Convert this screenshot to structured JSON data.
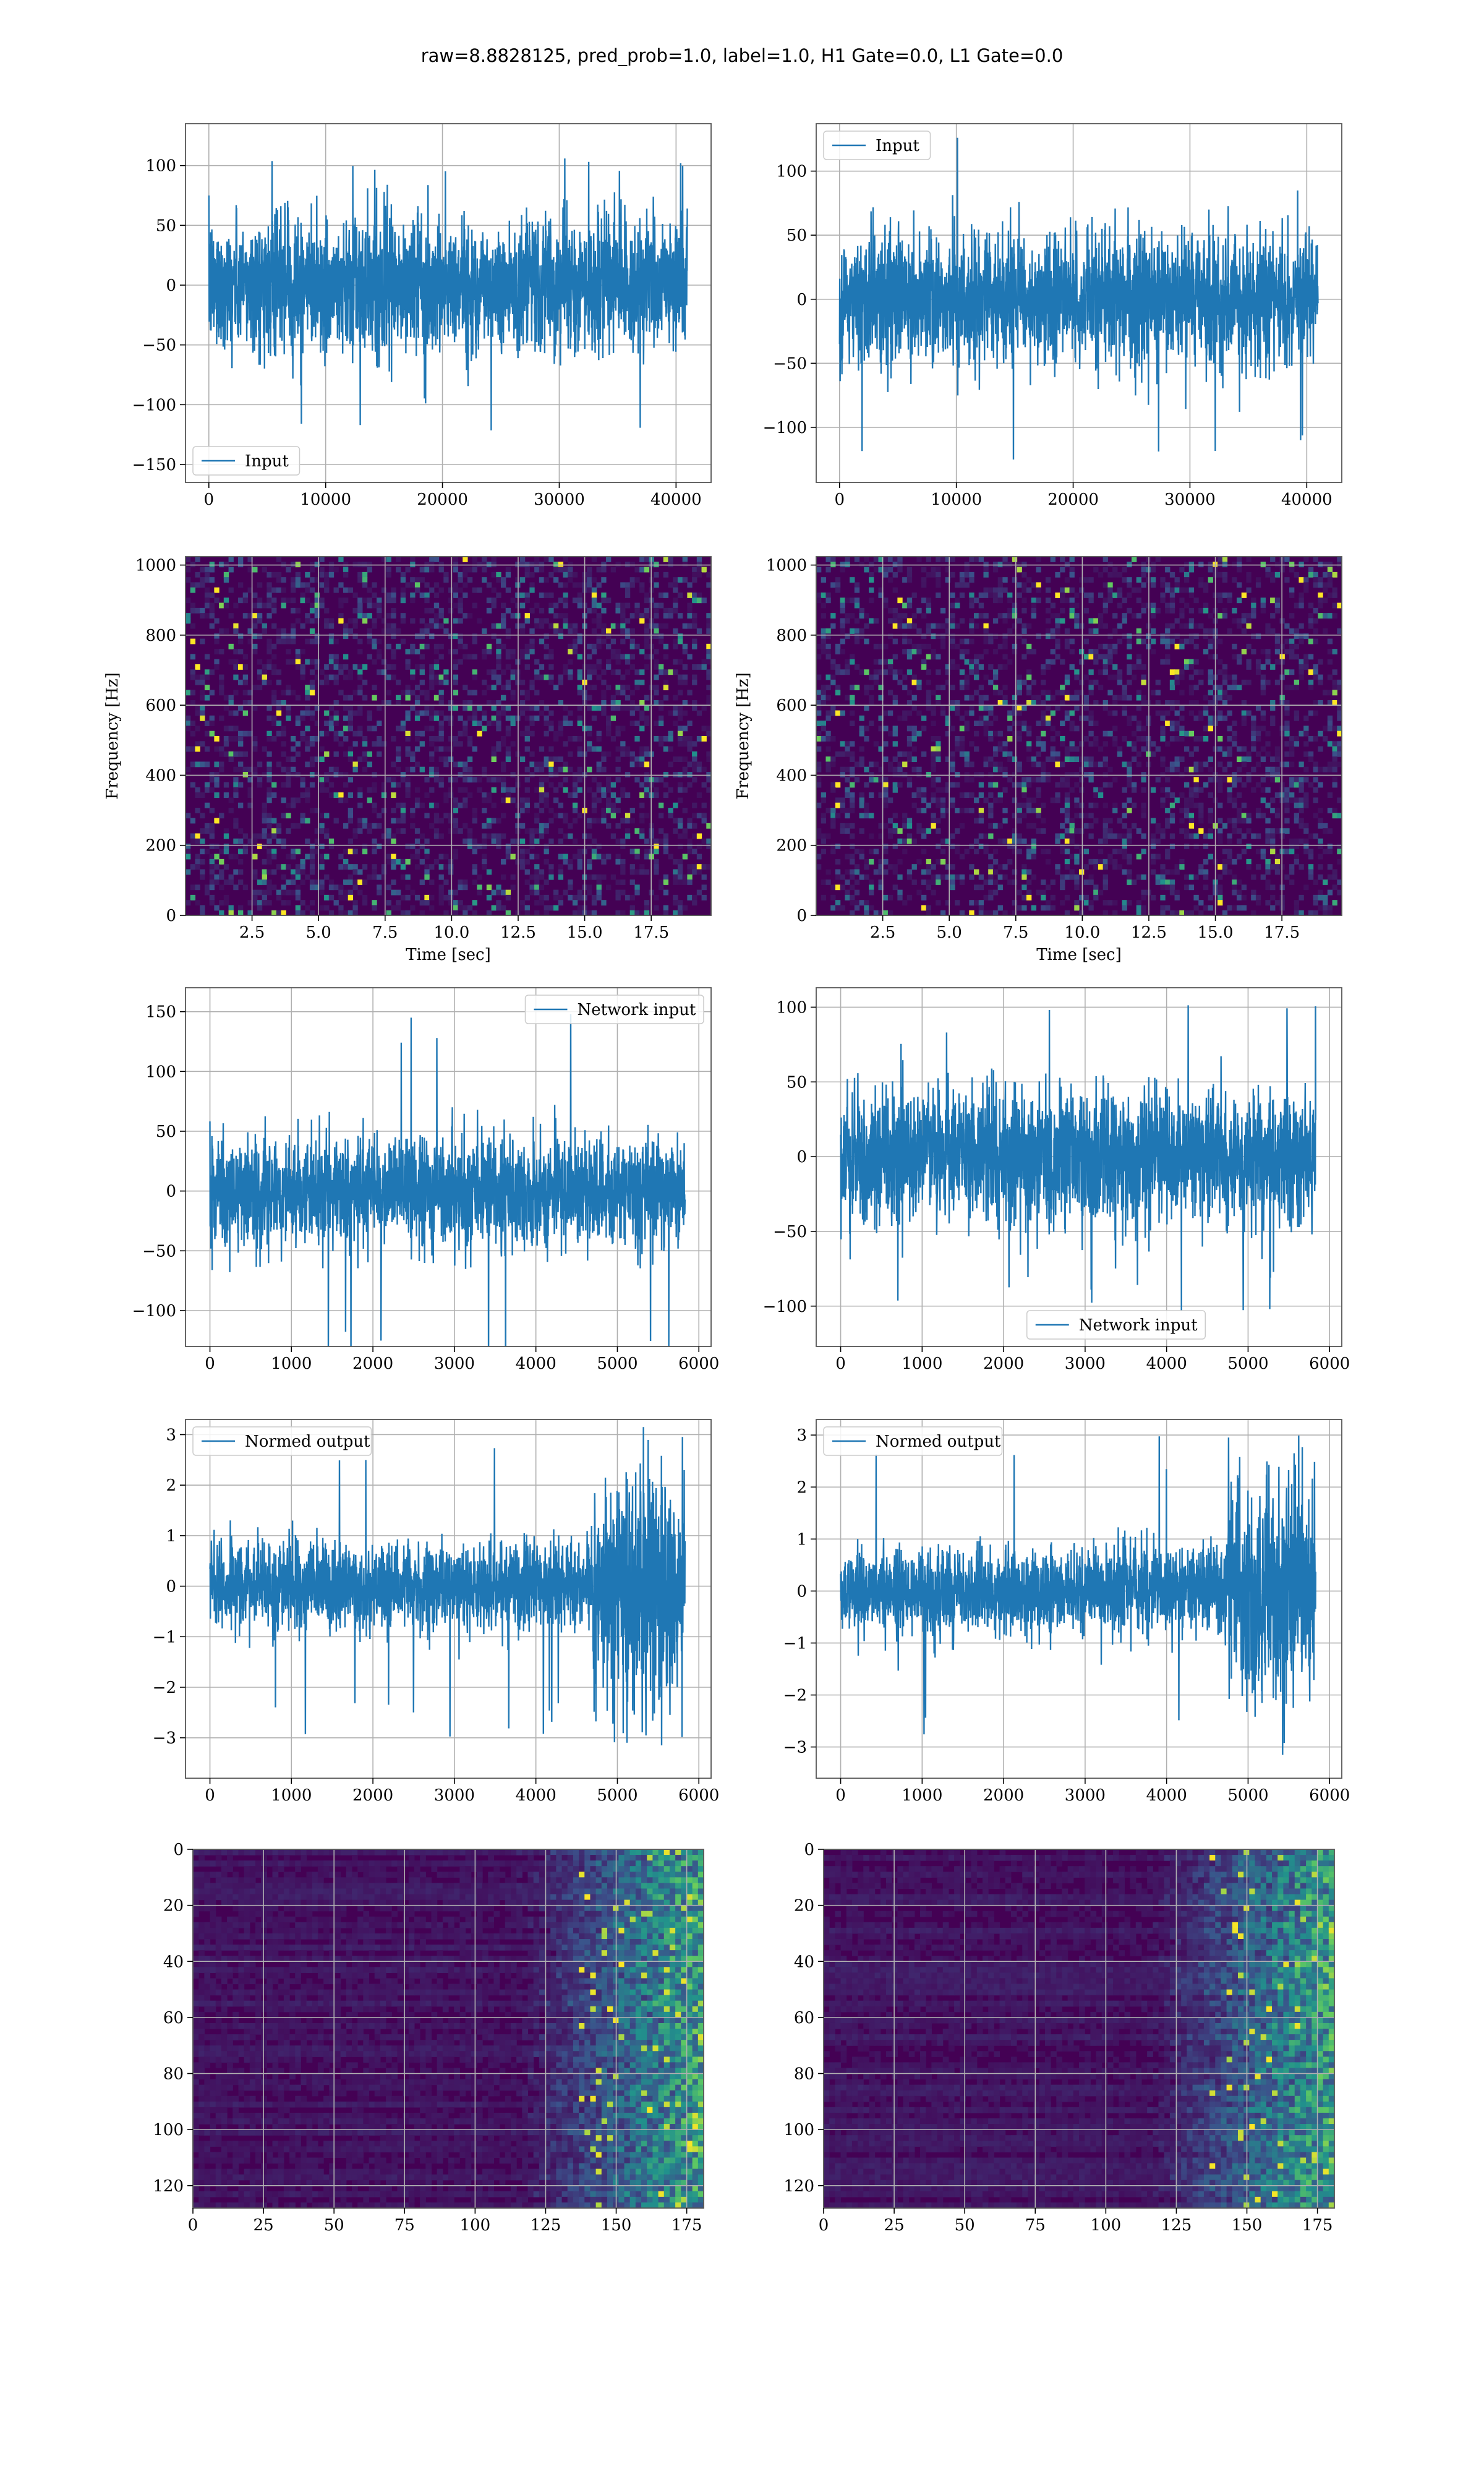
{
  "title": "raw=8.8828125, pred_prob=1.0, label=1.0, H1 Gate=0.0, L1 Gate=0.0",
  "colors": {
    "line": "#1f77b4",
    "grid": "#b0b0b0",
    "bg_dark": "#440154"
  },
  "chart_data": [
    {
      "type": "line",
      "series": [
        {
          "name": "Input"
        }
      ],
      "xlim": [
        -2000,
        43000
      ],
      "ylim": [
        -165,
        135
      ],
      "xticks": [
        "0",
        "10000",
        "20000",
        "30000",
        "40000"
      ],
      "yticks": [
        "100",
        "50",
        "0",
        "−50",
        "−100",
        "−150"
      ],
      "legend": "lower left",
      "signal": {
        "n": 40960,
        "std": 27,
        "peak": 125
      }
    },
    {
      "type": "line",
      "series": [
        {
          "name": "Input"
        }
      ],
      "xlim": [
        -2000,
        43000
      ],
      "ylim": [
        -143,
        137
      ],
      "xticks": [
        "0",
        "10000",
        "20000",
        "30000",
        "40000"
      ],
      "yticks": [
        "100",
        "50",
        "0",
        "−50",
        "−100"
      ],
      "legend": "upper left",
      "signal": {
        "n": 40960,
        "std": 25,
        "peak": 130
      }
    },
    {
      "type": "heatmap",
      "xlim": [
        0,
        19.75
      ],
      "ylim": [
        0,
        1024
      ],
      "ylabel": "Frequency [Hz]",
      "xlabel": "Time [sec]",
      "xticks": [
        "2.5",
        "5.0",
        "7.5",
        "10.0",
        "12.5",
        "15.0",
        "17.5"
      ],
      "yticks": [
        "1000",
        "800",
        "600",
        "400",
        "200",
        "0"
      ]
    },
    {
      "type": "heatmap",
      "xlim": [
        0,
        19.75
      ],
      "ylim": [
        0,
        1024
      ],
      "ylabel": "Frequency [Hz]",
      "xlabel": "Time [sec]",
      "xticks": [
        "2.5",
        "5.0",
        "7.5",
        "10.0",
        "12.5",
        "15.0",
        "17.5"
      ],
      "yticks": [
        "1000",
        "800",
        "600",
        "400",
        "200",
        "0"
      ]
    },
    {
      "type": "line",
      "series": [
        {
          "name": "Network input"
        }
      ],
      "xlim": [
        -300,
        6150
      ],
      "ylim": [
        -130,
        170
      ],
      "xticks": [
        "0",
        "1000",
        "2000",
        "3000",
        "4000",
        "5000",
        "6000"
      ],
      "yticks": [
        "150",
        "100",
        "50",
        "0",
        "−50",
        "−100"
      ],
      "legend": "upper right",
      "signal": {
        "n": 5830,
        "std": 22,
        "peak": 155
      }
    },
    {
      "type": "line",
      "series": [
        {
          "name": "Network input"
        }
      ],
      "xlim": [
        -300,
        6150
      ],
      "ylim": [
        -127,
        113
      ],
      "xticks": [
        "0",
        "1000",
        "2000",
        "3000",
        "4000",
        "5000",
        "6000"
      ],
      "yticks": [
        "100",
        "50",
        "0",
        "−50",
        "−100"
      ],
      "legend": "lower center",
      "signal": {
        "n": 5830,
        "std": 22,
        "peak": 107
      }
    },
    {
      "type": "line",
      "series": [
        {
          "name": "Normed output"
        }
      ],
      "xlim": [
        -300,
        6150
      ],
      "ylim": [
        -3.8,
        3.3
      ],
      "xticks": [
        "0",
        "1000",
        "2000",
        "3000",
        "4000",
        "5000",
        "6000"
      ],
      "yticks": [
        "3",
        "2",
        "1",
        "0",
        "−1",
        "−2",
        "−3"
      ],
      "legend": "upper left",
      "signal": {
        "n": 5830,
        "std": 0.42,
        "burst_start": 4700,
        "burst_std": 1.0,
        "peak": 3.0
      }
    },
    {
      "type": "line",
      "series": [
        {
          "name": "Normed output"
        }
      ],
      "xlim": [
        -300,
        6150
      ],
      "ylim": [
        -3.6,
        3.3
      ],
      "xticks": [
        "0",
        "1000",
        "2000",
        "3000",
        "4000",
        "5000",
        "6000"
      ],
      "yticks": [
        "3",
        "2",
        "1",
        "0",
        "−1",
        "−2",
        "−3"
      ],
      "legend": "upper left",
      "signal": {
        "n": 5830,
        "std": 0.4,
        "burst_start": 4750,
        "burst_std": 1.0,
        "peak": 3.0
      }
    },
    {
      "type": "heatmap",
      "xlim": [
        0,
        181
      ],
      "ylim": [
        128,
        0
      ],
      "xticks": [
        "0",
        "25",
        "50",
        "75",
        "100",
        "125",
        "150",
        "175"
      ],
      "yticks": [
        "0",
        "20",
        "40",
        "60",
        "80",
        "100",
        "120"
      ]
    },
    {
      "type": "heatmap",
      "xlim": [
        0,
        181
      ],
      "ylim": [
        128,
        0
      ],
      "xticks": [
        "0",
        "25",
        "50",
        "75",
        "100",
        "125",
        "150",
        "175"
      ],
      "yticks": [
        "0",
        "20",
        "40",
        "60",
        "80",
        "100",
        "120"
      ]
    }
  ]
}
